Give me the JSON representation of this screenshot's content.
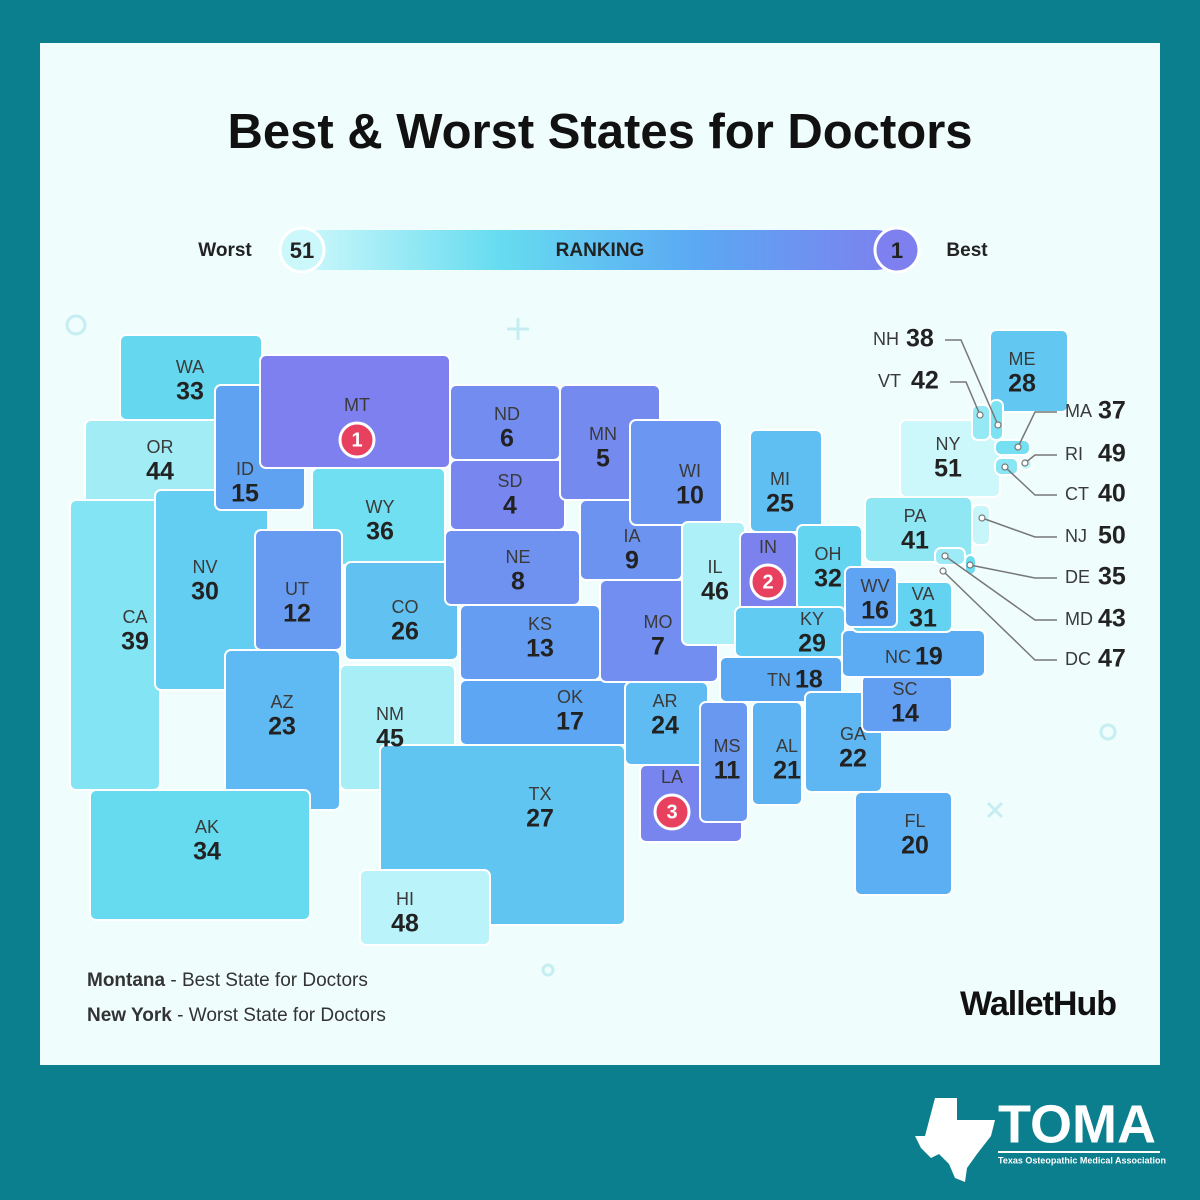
{
  "title": "Best & Worst States for Doctors",
  "legend": {
    "worst_label": "Worst",
    "worst_value": 51,
    "title": "RANKING",
    "best_value": 1,
    "best_label": "Best",
    "colors": [
      "#cdf8fb",
      "#66dcf0",
      "#5ba8f3",
      "#7d80ee"
    ]
  },
  "states": [
    {
      "abbr": "WA",
      "rank": 33
    },
    {
      "abbr": "OR",
      "rank": 44
    },
    {
      "abbr": "CA",
      "rank": 39
    },
    {
      "abbr": "NV",
      "rank": 30
    },
    {
      "abbr": "ID",
      "rank": 15
    },
    {
      "abbr": "MT",
      "rank": 1
    },
    {
      "abbr": "WY",
      "rank": 36
    },
    {
      "abbr": "UT",
      "rank": 12
    },
    {
      "abbr": "CO",
      "rank": 26
    },
    {
      "abbr": "AZ",
      "rank": 23
    },
    {
      "abbr": "NM",
      "rank": 45
    },
    {
      "abbr": "ND",
      "rank": 6
    },
    {
      "abbr": "SD",
      "rank": 4
    },
    {
      "abbr": "NE",
      "rank": 8
    },
    {
      "abbr": "KS",
      "rank": 13
    },
    {
      "abbr": "OK",
      "rank": 17
    },
    {
      "abbr": "TX",
      "rank": 27
    },
    {
      "abbr": "MN",
      "rank": 5
    },
    {
      "abbr": "IA",
      "rank": 9
    },
    {
      "abbr": "MO",
      "rank": 7
    },
    {
      "abbr": "AR",
      "rank": 24
    },
    {
      "abbr": "LA",
      "rank": 3
    },
    {
      "abbr": "WI",
      "rank": 10
    },
    {
      "abbr": "IL",
      "rank": 46
    },
    {
      "abbr": "MI",
      "rank": 25
    },
    {
      "abbr": "IN",
      "rank": 2
    },
    {
      "abbr": "OH",
      "rank": 32
    },
    {
      "abbr": "KY",
      "rank": 29
    },
    {
      "abbr": "TN",
      "rank": 18
    },
    {
      "abbr": "MS",
      "rank": 11
    },
    {
      "abbr": "AL",
      "rank": 21
    },
    {
      "abbr": "GA",
      "rank": 22
    },
    {
      "abbr": "FL",
      "rank": 20
    },
    {
      "abbr": "SC",
      "rank": 14
    },
    {
      "abbr": "NC",
      "rank": 19
    },
    {
      "abbr": "VA",
      "rank": 31
    },
    {
      "abbr": "WV",
      "rank": 16
    },
    {
      "abbr": "PA",
      "rank": 41
    },
    {
      "abbr": "NY",
      "rank": 51
    },
    {
      "abbr": "ME",
      "rank": 28
    },
    {
      "abbr": "AK",
      "rank": 34
    },
    {
      "abbr": "HI",
      "rank": 48
    },
    {
      "abbr": "VT",
      "rank": 42
    },
    {
      "abbr": "NH",
      "rank": 38
    },
    {
      "abbr": "MA",
      "rank": 37
    },
    {
      "abbr": "RI",
      "rank": 49
    },
    {
      "abbr": "CT",
      "rank": 40
    },
    {
      "abbr": "NJ",
      "rank": 50
    },
    {
      "abbr": "DE",
      "rank": 35
    },
    {
      "abbr": "MD",
      "rank": 43
    },
    {
      "abbr": "DC",
      "rank": 47
    }
  ],
  "footnotes": [
    {
      "state": "Montana",
      "text": "- Best State for Doctors"
    },
    {
      "state": "New York",
      "text": "- Worst State for Doctors"
    }
  ],
  "brand": "WalletHub",
  "logo": {
    "name": "TOMA",
    "subtitle": "Texas Osteopathic Medical Association"
  }
}
